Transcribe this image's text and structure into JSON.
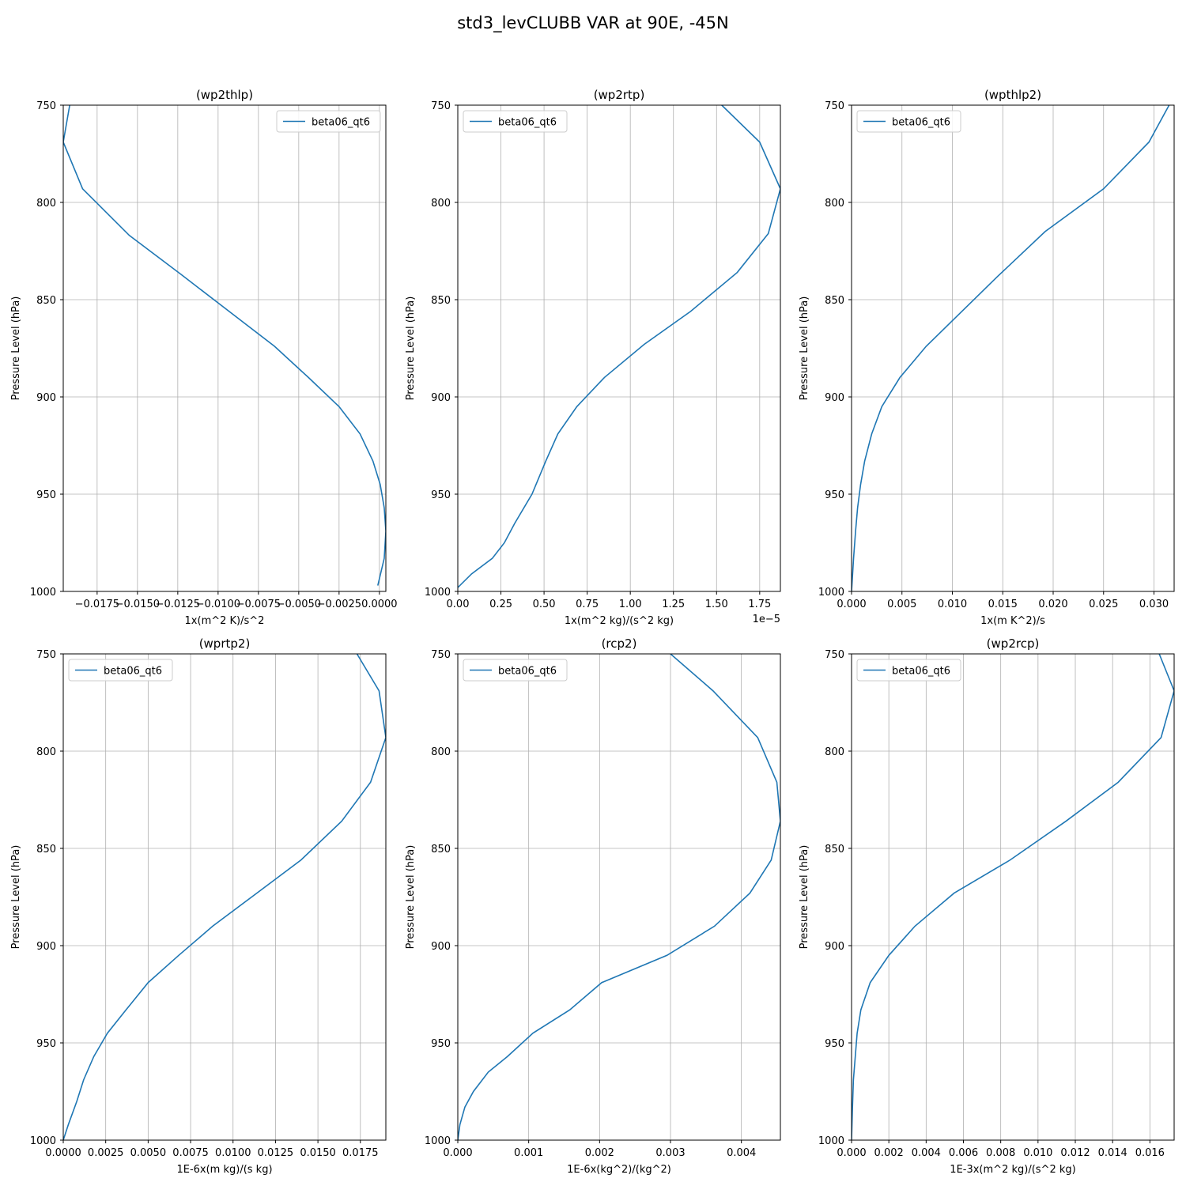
{
  "figure": {
    "title": "std3_levCLUBB VAR at 90E, -45N"
  },
  "colors": {
    "series": "#1f77b4",
    "grid": "#b0b0b0",
    "axis": "#000000"
  },
  "chart_data": [
    {
      "type": "line",
      "title": "(wp2thlp)",
      "xlabel": "1x(m^2 K)/s^2",
      "ylabel": "Pressure Level (hPa)",
      "xlim": [
        -0.0196,
        0.0004
      ],
      "ylim": [
        1000,
        750
      ],
      "xticks": [
        -0.0175,
        -0.015,
        -0.0125,
        -0.01,
        -0.0075,
        -0.005,
        -0.0025,
        0.0
      ],
      "xtick_labels": [
        "−0.0175",
        "−0.0150",
        "−0.0125",
        "−0.0100",
        "−0.0075",
        "−0.0050",
        "−0.0025",
        "0.0000"
      ],
      "yticks": [
        750,
        800,
        850,
        900,
        950,
        1000
      ],
      "ytick_labels": [
        "750",
        "800",
        "850",
        "900",
        "950",
        "1000"
      ],
      "offset_label": "",
      "grid": true,
      "legend_loc": "upper-right",
      "series": [
        {
          "name": "beta06_qt6",
          "x": [
            -0.0192,
            -0.0196,
            -0.0184,
            -0.0155,
            -0.0123,
            -0.0065,
            -0.0044,
            -0.0025,
            -0.0012,
            -0.0004,
            5e-05,
            0.0003,
            0.0004,
            0.0003,
            -0.0001
          ],
          "y": [
            750,
            769,
            793,
            817,
            837,
            874,
            890,
            905,
            919,
            933,
            945,
            957,
            969,
            983,
            997
          ]
        }
      ]
    },
    {
      "type": "line",
      "title": "(wp2rtp)",
      "xlabel": "1x(m^2 kg)/(s^2 kg)",
      "ylabel": "Pressure Level (hPa)",
      "xlim": [
        0,
        1.87
      ],
      "ylim": [
        1000,
        750
      ],
      "xticks": [
        0,
        0.25,
        0.5,
        0.75,
        1.0,
        1.25,
        1.5,
        1.75
      ],
      "xtick_labels": [
        "0.00",
        "0.25",
        "0.50",
        "0.75",
        "1.00",
        "1.25",
        "1.50",
        "1.75"
      ],
      "yticks": [
        750,
        800,
        850,
        900,
        950,
        1000
      ],
      "ytick_labels": [
        "750",
        "800",
        "850",
        "900",
        "950",
        "1000"
      ],
      "offset_label": "1e−5",
      "grid": true,
      "legend_loc": "upper-left",
      "series": [
        {
          "name": "beta06_qt6",
          "x": [
            1.53,
            1.75,
            1.87,
            1.8,
            1.62,
            1.35,
            1.08,
            0.85,
            0.69,
            0.58,
            0.51,
            0.43,
            0.33,
            0.27,
            0.2,
            0.08,
            0.0
          ],
          "y": [
            750,
            769,
            793,
            816,
            836,
            856,
            873,
            890,
            905,
            919,
            933,
            950,
            965,
            975,
            983,
            991,
            998
          ]
        }
      ]
    },
    {
      "type": "line",
      "title": "(wpthlp2)",
      "xlabel": "1x(m K^2)/s",
      "ylabel": "Pressure Level (hPa)",
      "xlim": [
        0,
        0.032
      ],
      "ylim": [
        1000,
        750
      ],
      "xticks": [
        0,
        0.005,
        0.01,
        0.015,
        0.02,
        0.025,
        0.03
      ],
      "xtick_labels": [
        "0.000",
        "0.005",
        "0.010",
        "0.015",
        "0.020",
        "0.025",
        "0.030"
      ],
      "yticks": [
        750,
        800,
        850,
        900,
        950,
        1000
      ],
      "ytick_labels": [
        "750",
        "800",
        "850",
        "900",
        "950",
        "1000"
      ],
      "offset_label": "",
      "grid": true,
      "legend_loc": "upper-left",
      "series": [
        {
          "name": "beta06_qt6",
          "x": [
            0.0315,
            0.0295,
            0.025,
            0.0192,
            0.0145,
            0.0074,
            0.0048,
            0.003,
            0.002,
            0.0013,
            0.0009,
            0.0006,
            0.0004,
            0.0002,
            0.0
          ],
          "y": [
            750,
            769,
            793,
            815,
            838,
            874,
            890,
            905,
            919,
            933,
            945,
            957,
            969,
            983,
            1000
          ]
        }
      ]
    },
    {
      "type": "line",
      "title": "(wprtp2)",
      "xlabel": "1E-6x(m kg)/(s kg)",
      "ylabel": "Pressure Level (hPa)",
      "xlim": [
        0,
        0.019
      ],
      "ylim": [
        1000,
        750
      ],
      "xticks": [
        0,
        0.0025,
        0.005,
        0.0075,
        0.01,
        0.0125,
        0.015,
        0.0175
      ],
      "xtick_labels": [
        "0.0000",
        "0.0025",
        "0.0050",
        "0.0075",
        "0.0100",
        "0.0125",
        "0.0150",
        "0.0175"
      ],
      "yticks": [
        750,
        800,
        850,
        900,
        950,
        1000
      ],
      "ytick_labels": [
        "750",
        "800",
        "850",
        "900",
        "950",
        "1000"
      ],
      "offset_label": "",
      "grid": true,
      "legend_loc": "upper-left",
      "series": [
        {
          "name": "beta06_qt6",
          "x": [
            0.0173,
            0.0186,
            0.019,
            0.0181,
            0.0164,
            0.014,
            0.0114,
            0.0088,
            0.0068,
            0.005,
            0.0037,
            0.0026,
            0.0018,
            0.0012,
            0.0008,
            0.0003,
            0.0
          ],
          "y": [
            750,
            769,
            793,
            816,
            836,
            856,
            873,
            890,
            905,
            919,
            933,
            945,
            957,
            969,
            980,
            992,
            1000
          ]
        }
      ]
    },
    {
      "type": "line",
      "title": "(rcp2)",
      "xlabel": "1E-6x(kg^2)/(kg^2)",
      "ylabel": "Pressure Level (hPa)",
      "xlim": [
        0,
        0.00455
      ],
      "ylim": [
        1000,
        750
      ],
      "xticks": [
        0,
        0.001,
        0.002,
        0.003,
        0.004
      ],
      "xtick_labels": [
        "0.000",
        "0.001",
        "0.002",
        "0.003",
        "0.004"
      ],
      "yticks": [
        750,
        800,
        850,
        900,
        950,
        1000
      ],
      "ytick_labels": [
        "750",
        "800",
        "850",
        "900",
        "950",
        "1000"
      ],
      "offset_label": "",
      "grid": true,
      "legend_loc": "upper-left",
      "series": [
        {
          "name": "beta06_qt6",
          "x": [
            0.003,
            0.0036,
            0.00423,
            0.0045,
            0.00455,
            0.00442,
            0.00412,
            0.00362,
            0.00295,
            0.00203,
            0.00158,
            0.00106,
            0.0007,
            0.00043,
            0.00022,
            0.0001,
            3e-05,
            0.0
          ],
          "y": [
            750,
            769,
            793,
            816,
            836,
            856,
            873,
            890,
            905,
            919,
            933,
            945,
            957,
            965,
            975,
            983,
            992,
            1000
          ]
        }
      ]
    },
    {
      "type": "line",
      "title": "(wp2rcp)",
      "xlabel": "1E-3x(m^2 kg)/(s^2 kg)",
      "ylabel": "Pressure Level (hPa)",
      "xlim": [
        0,
        0.0173
      ],
      "ylim": [
        1000,
        750
      ],
      "xticks": [
        0,
        0.002,
        0.004,
        0.006,
        0.008,
        0.01,
        0.012,
        0.014,
        0.016
      ],
      "xtick_labels": [
        "0.000",
        "0.002",
        "0.004",
        "0.006",
        "0.008",
        "0.010",
        "0.012",
        "0.014",
        "0.016"
      ],
      "yticks": [
        750,
        800,
        850,
        900,
        950,
        1000
      ],
      "ytick_labels": [
        "750",
        "800",
        "850",
        "900",
        "950",
        "1000"
      ],
      "offset_label": "",
      "grid": true,
      "legend_loc": "upper-left",
      "series": [
        {
          "name": "beta06_qt6",
          "x": [
            0.0165,
            0.0173,
            0.0166,
            0.0143,
            0.0115,
            0.0085,
            0.0055,
            0.0034,
            0.002,
            0.001,
            0.0005,
            0.0003,
            0.0002,
            0.0001,
            5e-05,
            0.0
          ],
          "y": [
            750,
            769,
            793,
            816,
            836,
            856,
            873,
            890,
            905,
            919,
            933,
            945,
            957,
            969,
            983,
            1000
          ]
        }
      ]
    }
  ]
}
